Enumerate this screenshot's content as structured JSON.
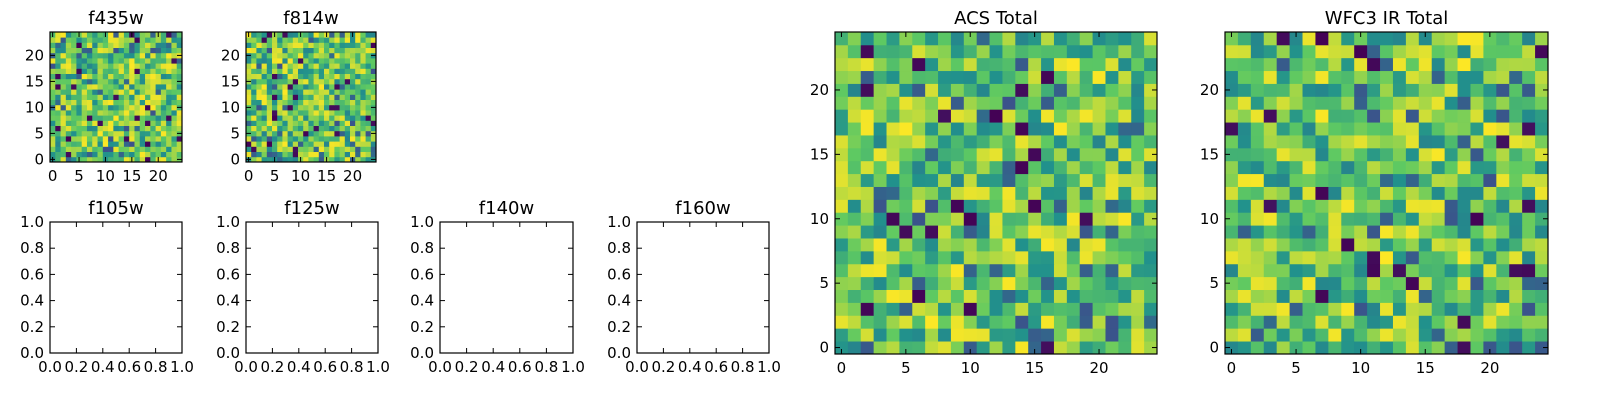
{
  "figure": {
    "colormap": [
      "#440154",
      "#3b528b",
      "#21918c",
      "#5ec962",
      "#fde725"
    ]
  },
  "chart_data": [
    {
      "type": "heatmap",
      "title": "f435w",
      "grid_size": [
        25,
        25
      ],
      "xlim": [
        0,
        25
      ],
      "ylim": [
        0,
        25
      ],
      "xticks": [
        0,
        5,
        10,
        15,
        20
      ],
      "yticks": [
        0,
        5,
        10,
        15,
        20
      ],
      "grid": false,
      "seed": 11
    },
    {
      "type": "heatmap",
      "title": "f814w",
      "grid_size": [
        25,
        25
      ],
      "xlim": [
        0,
        25
      ],
      "ylim": [
        0,
        25
      ],
      "xticks": [
        0,
        5,
        10,
        15,
        20
      ],
      "yticks": [
        0,
        5,
        10,
        15,
        20
      ],
      "grid": false,
      "seed": 23
    },
    {
      "type": "line",
      "title": "f105w",
      "series": [],
      "xlim": [
        0,
        1
      ],
      "ylim": [
        0,
        1
      ],
      "xticks": [
        0.0,
        0.2,
        0.4,
        0.6,
        0.8,
        1.0
      ],
      "yticks": [
        0.0,
        0.2,
        0.4,
        0.6,
        0.8,
        1.0
      ],
      "grid": false
    },
    {
      "type": "line",
      "title": "f125w",
      "series": [],
      "xlim": [
        0,
        1
      ],
      "ylim": [
        0,
        1
      ],
      "xticks": [
        0.0,
        0.2,
        0.4,
        0.6,
        0.8,
        1.0
      ],
      "yticks": [
        0.0,
        0.2,
        0.4,
        0.6,
        0.8,
        1.0
      ],
      "grid": false
    },
    {
      "type": "line",
      "title": "f140w",
      "series": [],
      "xlim": [
        0,
        1
      ],
      "ylim": [
        0,
        1
      ],
      "xticks": [
        0.0,
        0.2,
        0.4,
        0.6,
        0.8,
        1.0
      ],
      "yticks": [
        0.0,
        0.2,
        0.4,
        0.6,
        0.8,
        1.0
      ],
      "grid": false
    },
    {
      "type": "line",
      "title": "f160w",
      "series": [],
      "xlim": [
        0,
        1
      ],
      "ylim": [
        0,
        1
      ],
      "xticks": [
        0.0,
        0.2,
        0.4,
        0.6,
        0.8,
        1.0
      ],
      "yticks": [
        0.0,
        0.2,
        0.4,
        0.6,
        0.8,
        1.0
      ],
      "grid": false
    },
    {
      "type": "heatmap",
      "title": "ACS Total",
      "grid_size": [
        25,
        25
      ],
      "xlim": [
        0,
        25
      ],
      "ylim": [
        0,
        25
      ],
      "xticks": [
        0,
        5,
        10,
        15,
        20
      ],
      "yticks": [
        0,
        5,
        10,
        15,
        20
      ],
      "grid": false,
      "seed": 37
    },
    {
      "type": "heatmap",
      "title": "WFC3 IR Total",
      "grid_size": [
        25,
        25
      ],
      "xlim": [
        0,
        25
      ],
      "ylim": [
        0,
        25
      ],
      "xticks": [
        0,
        5,
        10,
        15,
        20
      ],
      "yticks": [
        0,
        5,
        10,
        15,
        20
      ],
      "grid": false,
      "seed": 53
    }
  ]
}
